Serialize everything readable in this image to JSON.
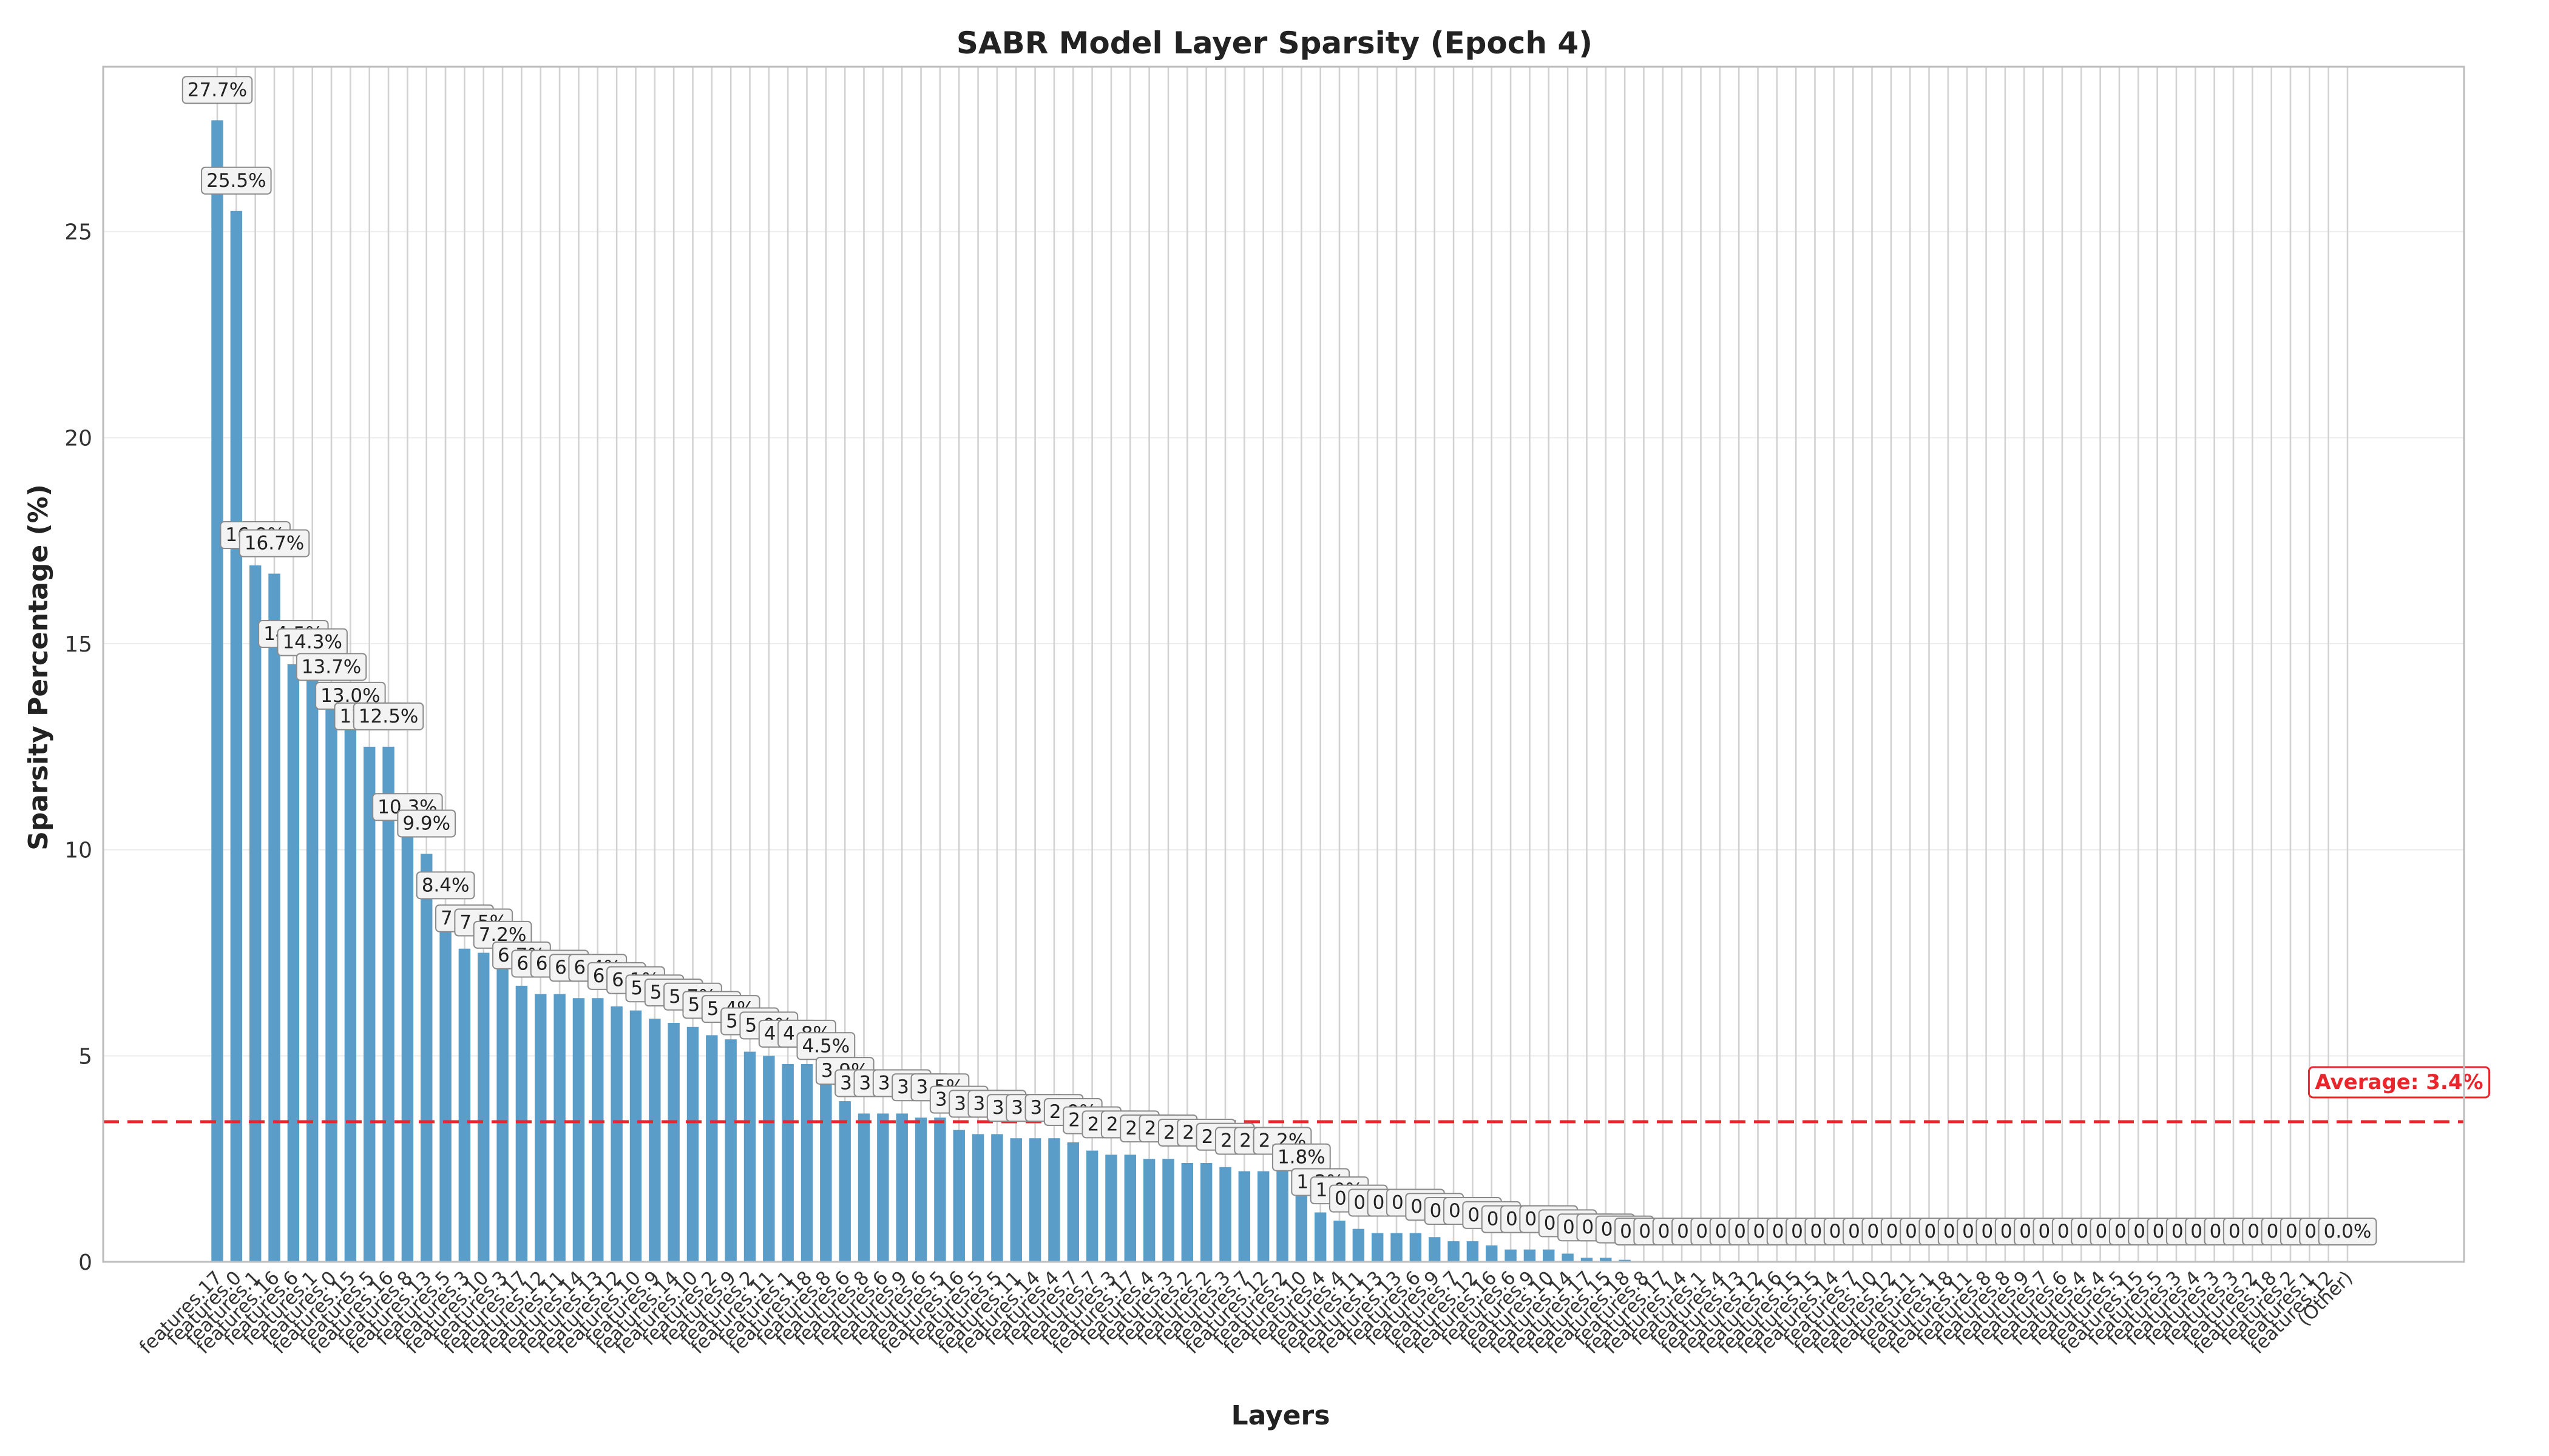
{
  "chart_data": {
    "type": "bar",
    "title": "SABR Model Layer Sparsity (Epoch 4)",
    "xlabel": "Layers",
    "ylabel": "Sparsity Percentage (%)",
    "ylim": [
      0,
      29
    ],
    "yticks": [
      0,
      5,
      10,
      15,
      20,
      25
    ],
    "grid": true,
    "bar_color": "#5b9dc9",
    "average": {
      "value": 3.4,
      "label": "Average: 3.4%",
      "color": "#e8262b"
    },
    "categories": [
      "features.17",
      "features.0",
      "features.1",
      "features.16",
      "features.6",
      "features.1",
      "features.0",
      "features.15",
      "features.5",
      "features.16",
      "features.8",
      "features.13",
      "features.5",
      "features.3",
      "features.10",
      "features.3",
      "features.17",
      "features.12",
      "features.11",
      "features.14",
      "features.13",
      "features.12",
      "features.10",
      "features.9",
      "features.14",
      "features.10",
      "features.2",
      "features.9",
      "features.2",
      "features.11",
      "features.1",
      "features.18",
      "features.8",
      "features.6",
      "features.8",
      "features.6",
      "features.9",
      "features.6",
      "features.5",
      "features.16",
      "features.5",
      "features.5",
      "features.11",
      "features.14",
      "features.4",
      "features.7",
      "features.7",
      "features.3",
      "features.17",
      "features.4",
      "features.3",
      "features.2",
      "features.2",
      "features.3",
      "features.7",
      "features.12",
      "features.2",
      "features.10",
      "features.4",
      "features.4",
      "features.11",
      "features.13",
      "features.13",
      "features.6",
      "features.9",
      "features.7",
      "features.12",
      "features.16",
      "features.6",
      "features.9",
      "features.10",
      "features.14",
      "features.17",
      "features.15",
      "features.18",
      "features.8",
      "features.17",
      "features.14",
      "features.1",
      "features.4",
      "features.13",
      "features.12",
      "features.16",
      "features.15",
      "features.15",
      "features.14",
      "features.7",
      "features.10",
      "features.12",
      "features.11",
      "features.1",
      "features.18",
      "features.11",
      "features.8",
      "features.8",
      "features.9",
      "features.7",
      "features.6",
      "features.4",
      "features.4",
      "features.5",
      "features.15",
      "features.5",
      "features.3",
      "features.4",
      "features.3",
      "features.3",
      "features.2",
      "features.18",
      "features.2",
      "features.1",
      "features.12",
      "(Other)"
    ],
    "values": [
      27.7,
      25.5,
      16.9,
      16.7,
      14.5,
      14.3,
      13.7,
      13.0,
      12.5,
      12.5,
      10.3,
      9.9,
      8.4,
      7.6,
      7.5,
      7.2,
      6.7,
      6.5,
      6.5,
      6.4,
      6.4,
      6.2,
      6.1,
      5.9,
      5.8,
      5.7,
      5.5,
      5.4,
      5.1,
      5.0,
      4.8,
      4.8,
      4.5,
      3.9,
      3.6,
      3.6,
      3.6,
      3.5,
      3.5,
      3.2,
      3.1,
      3.1,
      3.0,
      3.0,
      3.0,
      2.9,
      2.7,
      2.6,
      2.6,
      2.5,
      2.5,
      2.4,
      2.4,
      2.3,
      2.2,
      2.2,
      2.2,
      1.8,
      1.2,
      1.0,
      0.8,
      0.7,
      0.7,
      0.7,
      0.6,
      0.5,
      0.5,
      0.4,
      0.3,
      0.3,
      0.3,
      0.2,
      0.1,
      0.1,
      0.05,
      0.0,
      0.0,
      0.0,
      0.0,
      0.0,
      0.0,
      0.0,
      0.0,
      0.0,
      0.0,
      0.0,
      0.0,
      0.0,
      0.0,
      0.0,
      0.0,
      0.0,
      0.0,
      0.0,
      0.0,
      0.0,
      0.0,
      0.0,
      0.0,
      0.0,
      0.0,
      0.0,
      0.0,
      0.0,
      0.0,
      0.0,
      0.0,
      0.0,
      0.0,
      0.0,
      0.0,
      0.0,
      0.0
    ],
    "data_labels": [
      "27.7%",
      "25.5%",
      "16.9%",
      "16.7%",
      "14.5%",
      "14.3%",
      "13.7%",
      "13.0%",
      "12.5%",
      "12.5%",
      "10.3%",
      "9.9%",
      "8.4%",
      "7.6%",
      "7.5%",
      "7.2%",
      "6.7%",
      "6.5%",
      "6.5%",
      "6.4%",
      "6.4%",
      "6.2%",
      "6.1%",
      "5.9%",
      "5.8%",
      "5.7%",
      "5.5%",
      "5.4%",
      "5.1%",
      "5.0%",
      "4.8%",
      "4.8%",
      "4.5%",
      "3.9%",
      "3.6%",
      "3.6%",
      "3.6%",
      "3.5%",
      "3.5%",
      "3.2%",
      "3.1%",
      "3.1%",
      "3.0%",
      "3.0%",
      "3.0%",
      "2.9%",
      "2.7%",
      "2.6%",
      "2.6%",
      "2.5%",
      "2.5%",
      "2.4%",
      "2.4%",
      "2.3%",
      "2.2%",
      "2.2%",
      "2.2%",
      "1.8%",
      "1.2%",
      "1.0%",
      "0.8%",
      "0.7%",
      "0.7%",
      "0.7%",
      "0.6%",
      "0.5%",
      "0.5%",
      "0.4%",
      "0.3%",
      "0.3%",
      "0.3%",
      "0.2%",
      "0.1%",
      "0.1%",
      "0.0%",
      "0.0%",
      "0.0%",
      "0.0%",
      "0.0%",
      "0.0%",
      "0.0%",
      "0.0%",
      "0.0%",
      "0.0%",
      "0.0%",
      "0.0%",
      "0.0%",
      "0.0%",
      "0.0%",
      "0.0%",
      "0.0%",
      "0.0%",
      "0.0%",
      "0.0%",
      "0.0%",
      "0.0%",
      "0.0%",
      "0.0%",
      "0.0%",
      "0.0%",
      "0.0%",
      "0.0%",
      "0.0%",
      "0.0%",
      "0.0%",
      "0.0%",
      "0.0%",
      "0.0%",
      "0.0%",
      "0.0%",
      "0.0%",
      "0.0%",
      "0.0%"
    ]
  }
}
